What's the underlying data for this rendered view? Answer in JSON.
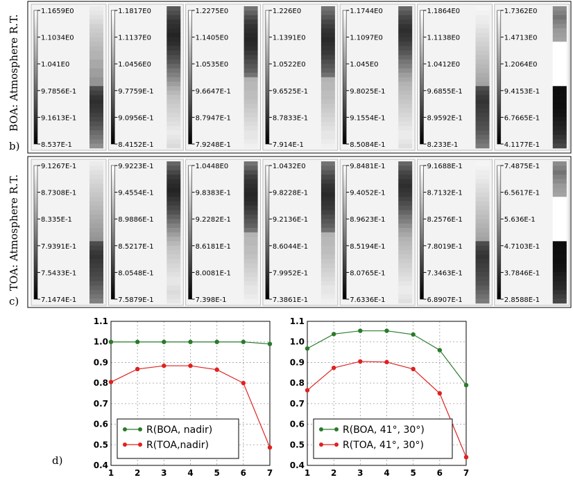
{
  "row_labels": {
    "b_letter": "b)",
    "b_text": "BOA: Atmosphere R.T.",
    "c_letter": "c)",
    "c_text": "TOA: Atmosphere R.T.",
    "d_letter": "d)"
  },
  "colorbar_rows": [
    {
      "name": "boa",
      "cells": [
        {
          "ticks": [
            "1.1659E0",
            "1.1034E0",
            "1.041E0",
            "9.7856E-1",
            "9.1613E-1",
            "8.537E-1"
          ],
          "strip": [
            0.92,
            0.9,
            0.88,
            0.85,
            0.82,
            0.8,
            0.78,
            0.76,
            0.74,
            0.72,
            0.7,
            0.7,
            0.66,
            0.66,
            0.62,
            0.62,
            0.58,
            0.58,
            0.3,
            0.25,
            0.2,
            0.18,
            0.2,
            0.22,
            0.25,
            0.28,
            0.32,
            0.36,
            0.42,
            0.46,
            0.5,
            0.56
          ]
        },
        {
          "ticks": [
            "1.1817E0",
            "1.1137E0",
            "1.0456E0",
            "9.7759E-1",
            "9.0956E-1",
            "8.4152E-1"
          ],
          "strip": [
            0.35,
            0.3,
            0.25,
            0.2,
            0.18,
            0.16,
            0.14,
            0.16,
            0.18,
            0.22,
            0.26,
            0.3,
            0.34,
            0.4,
            0.46,
            0.5,
            0.56,
            0.62,
            0.68,
            0.72,
            0.76,
            0.78,
            0.8,
            0.82,
            0.84,
            0.86,
            0.88,
            0.9,
            0.92,
            0.9,
            0.88,
            0.86
          ]
        },
        {
          "ticks": [
            "1.2275E0",
            "1.1405E0",
            "1.0535E0",
            "9.6647E-1",
            "8.7947E-1",
            "7.9248E-1"
          ],
          "strip": [
            0.45,
            0.38,
            0.3,
            0.24,
            0.2,
            0.18,
            0.16,
            0.15,
            0.16,
            0.18,
            0.22,
            0.26,
            0.3,
            0.34,
            0.38,
            0.45,
            0.7,
            0.72,
            0.72,
            0.74,
            0.74,
            0.76,
            0.78,
            0.8,
            0.82,
            0.84,
            0.86,
            0.88,
            0.9,
            0.9,
            0.92,
            0.94
          ]
        },
        {
          "ticks": [
            "1.226E0",
            "1.1391E0",
            "1.0522E0",
            "9.6525E-1",
            "8.7833E-1",
            "7.914E-1"
          ],
          "strip": [
            0.45,
            0.4,
            0.34,
            0.28,
            0.24,
            0.2,
            0.18,
            0.16,
            0.18,
            0.2,
            0.22,
            0.26,
            0.3,
            0.34,
            0.38,
            0.44,
            0.7,
            0.72,
            0.72,
            0.74,
            0.74,
            0.76,
            0.78,
            0.8,
            0.82,
            0.84,
            0.86,
            0.88,
            0.9,
            0.9,
            0.92,
            0.94
          ]
        },
        {
          "ticks": [
            "1.1744E0",
            "1.1097E0",
            "1.045E0",
            "9.8025E-1",
            "9.1554E-1",
            "8.5084E-1"
          ],
          "strip": [
            0.4,
            0.34,
            0.28,
            0.24,
            0.2,
            0.18,
            0.2,
            0.22,
            0.26,
            0.3,
            0.34,
            0.4,
            0.46,
            0.5,
            0.56,
            0.62,
            0.66,
            0.7,
            0.72,
            0.74,
            0.76,
            0.78,
            0.8,
            0.82,
            0.84,
            0.86,
            0.88,
            0.9,
            0.92,
            0.92,
            0.9,
            0.88
          ]
        },
        {
          "ticks": [
            "1.1864E0",
            "1.1138E0",
            "1.0412E0",
            "9.6855E-1",
            "8.9592E-1",
            "8.233E-1"
          ],
          "strip": [
            0.96,
            0.95,
            0.93,
            0.92,
            0.9,
            0.88,
            0.86,
            0.84,
            0.82,
            0.8,
            0.78,
            0.76,
            0.74,
            0.72,
            0.7,
            0.68,
            0.66,
            0.64,
            0.3,
            0.26,
            0.22,
            0.2,
            0.22,
            0.24,
            0.26,
            0.28,
            0.3,
            0.32,
            0.36,
            0.4,
            0.44,
            0.48
          ]
        },
        {
          "ticks": [
            "1.7362E0",
            "1.4713E0",
            "1.2064E0",
            "9.4153E-1",
            "6.7665E-1",
            "4.1177E-1"
          ],
          "strip": [
            0.55,
            0.5,
            0.45,
            0.5,
            0.55,
            0.6,
            0.62,
            0.64,
            1,
            1,
            1,
            1,
            1,
            1,
            1,
            1,
            1,
            1,
            0.05,
            0.05,
            0.05,
            0.06,
            0.06,
            0.07,
            0.08,
            0.1,
            0.12,
            0.14,
            0.16,
            0.2,
            0.24,
            0.28
          ]
        }
      ]
    },
    {
      "name": "toa",
      "cells": [
        {
          "ticks": [
            "9.1267E-1",
            "8.7308E-1",
            "8.335E-1",
            "7.9391E-1",
            "7.5433E-1",
            "7.1474E-1"
          ],
          "strip": [
            0.92,
            0.9,
            0.88,
            0.86,
            0.84,
            0.82,
            0.8,
            0.78,
            0.76,
            0.74,
            0.72,
            0.7,
            0.68,
            0.66,
            0.64,
            0.62,
            0.6,
            0.58,
            0.3,
            0.26,
            0.22,
            0.2,
            0.22,
            0.24,
            0.26,
            0.28,
            0.3,
            0.34,
            0.38,
            0.42,
            0.46,
            0.5
          ]
        },
        {
          "ticks": [
            "9.9223E-1",
            "9.4554E-1",
            "8.9886E-1",
            "8.5217E-1",
            "8.0548E-1",
            "7.5879E-1"
          ],
          "strip": [
            0.4,
            0.34,
            0.28,
            0.22,
            0.18,
            0.16,
            0.14,
            0.16,
            0.2,
            0.24,
            0.28,
            0.32,
            0.38,
            0.44,
            0.5,
            0.56,
            0.62,
            0.68,
            0.72,
            0.76,
            0.78,
            0.8,
            0.82,
            0.84,
            0.86,
            0.88,
            0.9,
            0.9,
            0.88,
            0.86,
            0.88,
            0.9
          ]
        },
        {
          "ticks": [
            "1.0448E0",
            "9.8383E-1",
            "9.2282E-1",
            "8.6181E-1",
            "8.0081E-1",
            "7.398E-1"
          ],
          "strip": [
            0.45,
            0.38,
            0.3,
            0.24,
            0.2,
            0.18,
            0.16,
            0.15,
            0.16,
            0.18,
            0.22,
            0.26,
            0.3,
            0.34,
            0.38,
            0.45,
            0.7,
            0.72,
            0.72,
            0.74,
            0.74,
            0.76,
            0.78,
            0.8,
            0.82,
            0.84,
            0.86,
            0.88,
            0.9,
            0.9,
            0.92,
            0.94
          ]
        },
        {
          "ticks": [
            "1.0432E0",
            "9.8228E-1",
            "9.2136E-1",
            "8.6044E-1",
            "7.9952E-1",
            "7.3861E-1"
          ],
          "strip": [
            0.45,
            0.4,
            0.34,
            0.28,
            0.24,
            0.2,
            0.18,
            0.16,
            0.18,
            0.2,
            0.22,
            0.26,
            0.3,
            0.34,
            0.38,
            0.44,
            0.7,
            0.72,
            0.72,
            0.74,
            0.74,
            0.76,
            0.78,
            0.8,
            0.82,
            0.84,
            0.86,
            0.88,
            0.9,
            0.9,
            0.92,
            0.94
          ]
        },
        {
          "ticks": [
            "9.8481E-1",
            "9.4052E-1",
            "8.9623E-1",
            "8.5194E-1",
            "8.0765E-1",
            "7.6336E-1"
          ],
          "strip": [
            0.4,
            0.34,
            0.28,
            0.24,
            0.2,
            0.18,
            0.2,
            0.22,
            0.26,
            0.3,
            0.34,
            0.4,
            0.46,
            0.5,
            0.56,
            0.62,
            0.66,
            0.7,
            0.72,
            0.74,
            0.76,
            0.78,
            0.8,
            0.82,
            0.84,
            0.86,
            0.88,
            0.9,
            0.92,
            0.92,
            0.9,
            0.88
          ]
        },
        {
          "ticks": [
            "9.1688E-1",
            "8.7132E-1",
            "8.2576E-1",
            "7.8019E-1",
            "7.3463E-1",
            "6.8907E-1"
          ],
          "strip": [
            0.96,
            0.95,
            0.93,
            0.92,
            0.9,
            0.88,
            0.86,
            0.84,
            0.82,
            0.8,
            0.78,
            0.76,
            0.74,
            0.72,
            0.7,
            0.68,
            0.66,
            0.64,
            0.3,
            0.26,
            0.22,
            0.2,
            0.22,
            0.24,
            0.26,
            0.28,
            0.3,
            0.32,
            0.36,
            0.4,
            0.44,
            0.48
          ]
        },
        {
          "ticks": [
            "7.4875E-1",
            "6.5617E-1",
            "5.636E-1",
            "4.7103E-1",
            "3.7846E-1",
            "2.8588E-1"
          ],
          "strip": [
            0.55,
            0.5,
            0.45,
            0.5,
            0.55,
            0.6,
            0.62,
            0.64,
            1,
            1,
            1,
            1,
            1,
            1,
            1,
            1,
            1,
            1,
            0.05,
            0.05,
            0.05,
            0.06,
            0.06,
            0.07,
            0.08,
            0.1,
            0.12,
            0.14,
            0.16,
            0.2,
            0.24,
            0.28
          ]
        }
      ]
    }
  ],
  "chart_data": [
    {
      "type": "line",
      "x": [
        1,
        2,
        3,
        4,
        5,
        6,
        7
      ],
      "xticks": [
        "1",
        "2",
        "3",
        "4",
        "5",
        "6",
        "7"
      ],
      "yticks": [
        "0.4",
        "0.5",
        "0.6",
        "0.7",
        "0.8",
        "0.9",
        "1.0",
        "1.1"
      ],
      "xlim": [
        1,
        7
      ],
      "ylim": [
        0.4,
        1.1
      ],
      "grid": true,
      "legend": "bottom-left",
      "series": [
        {
          "name": "R(BOA, nadir)",
          "color": "#2a7a2a",
          "values": [
            1.0,
            1.0,
            1.0,
            1.0,
            1.0,
            1.0,
            0.99
          ]
        },
        {
          "name": "R(TOA,nadir)",
          "color": "#e02020",
          "values": [
            0.805,
            0.868,
            0.884,
            0.884,
            0.865,
            0.8,
            0.487
          ]
        }
      ]
    },
    {
      "type": "line",
      "x": [
        1,
        2,
        3,
        4,
        5,
        6,
        7
      ],
      "xticks": [
        "1",
        "2",
        "3",
        "4",
        "5",
        "6",
        "7"
      ],
      "yticks": [
        "0.4",
        "0.5",
        "0.6",
        "0.7",
        "0.8",
        "0.9",
        "1.0",
        "1.1"
      ],
      "xlim": [
        1,
        7
      ],
      "ylim": [
        0.4,
        1.1
      ],
      "grid": true,
      "legend": "bottom-left",
      "series": [
        {
          "name": "R(BOA, 41°, 30°)",
          "color": "#2a7a2a",
          "values": [
            0.968,
            1.038,
            1.054,
            1.054,
            1.036,
            0.96,
            0.79
          ]
        },
        {
          "name": "R(TOA, 41°, 30°)",
          "color": "#e02020",
          "values": [
            0.765,
            0.874,
            0.905,
            0.902,
            0.868,
            0.75,
            0.44
          ]
        }
      ]
    }
  ]
}
